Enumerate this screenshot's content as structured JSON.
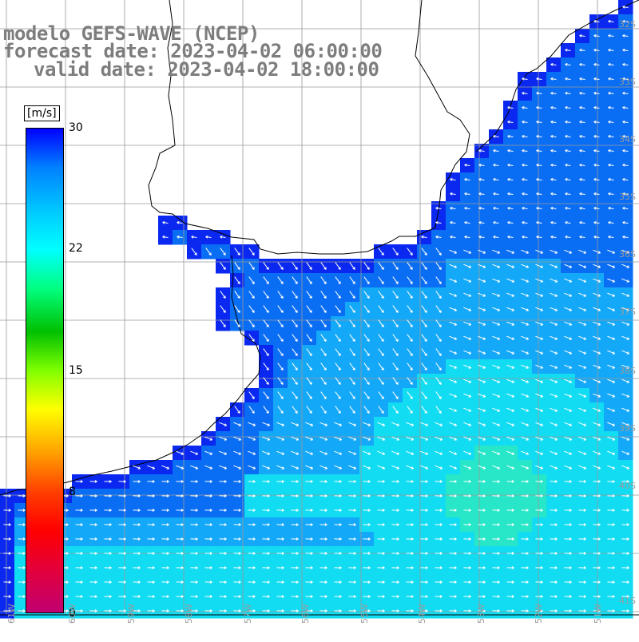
{
  "titles": {
    "line1": "modelo GEFS-WAVE (NCEP)",
    "line2": "forecast date: 2023-04-02 06:00:00",
    "line3": "valid date: 2023-04-02 18:00:00"
  },
  "colorbar": {
    "units": "[m/s]",
    "ticks": [
      "30",
      "22",
      "15",
      "8",
      "0"
    ],
    "range": [
      0,
      30
    ],
    "colors": [
      "#0000ff",
      "#0080ff",
      "#00c8ff",
      "#00ffff",
      "#00ff80",
      "#00c000",
      "#80ff00",
      "#ffff00",
      "#ffa000",
      "#ff4000",
      "#ff0000",
      "#e00040",
      "#c00070"
    ]
  },
  "map": {
    "lat_labels": [
      "32S",
      "33S",
      "34S",
      "35S",
      "36S",
      "37S",
      "38S",
      "39S",
      "40S",
      "41S"
    ],
    "lon_labels": [
      "61W",
      "60W",
      "59W",
      "58W",
      "57W",
      "56W",
      "55W",
      "54W",
      "53W",
      "52W",
      "51W"
    ],
    "land_color": "#ffffff",
    "grid_color": "#999999",
    "coast_color": "#000000",
    "arrow_color": "#ffffff",
    "wind_field_note_colors": {
      "deep_blue": "#0a28f0",
      "blue": "#0a6ef5",
      "light_blue": "#14a8f8",
      "cyan": "#12dcf2",
      "green_cyan": "#28e6c8"
    }
  }
}
